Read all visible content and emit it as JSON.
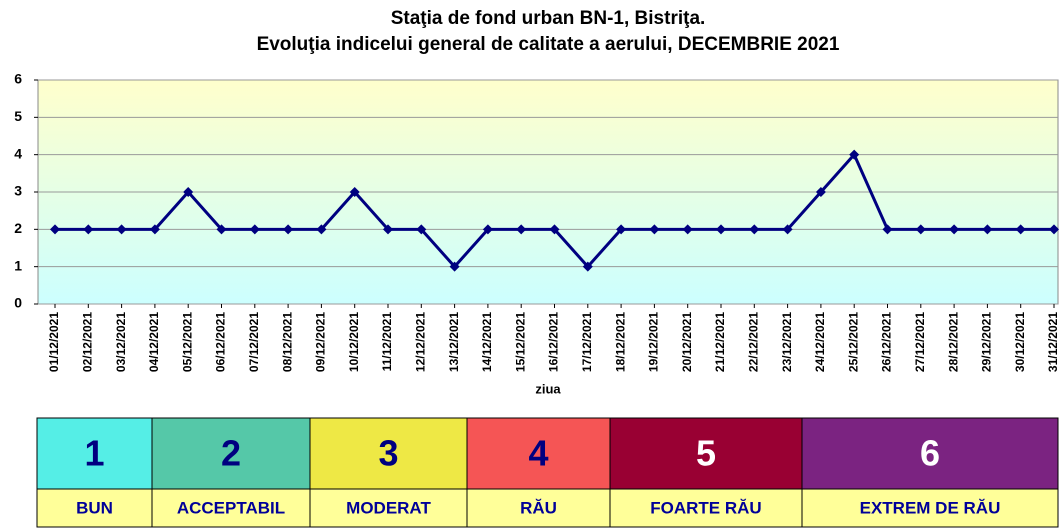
{
  "chart_data": {
    "type": "line",
    "title": "Staţia de fond urban BN-1, Bistriţa.",
    "subtitle": "Evoluţia indicelui general de calitate a aerului, DECEMBRIE 2021",
    "x_label": "ziua",
    "categories": [
      "01/12/2021",
      "02/12/2021",
      "03/12/2021",
      "04/12/2021",
      "05/12/2021",
      "06/12/2021",
      "07/12/2021",
      "08/12/2021",
      "09/12/2021",
      "10/12/2021",
      "11/12/2021",
      "12/12/2021",
      "13/12/2021",
      "14/12/2021",
      "15/12/2021",
      "16/12/2021",
      "17/12/2021",
      "18/12/2021",
      "19/12/2021",
      "20/12/2021",
      "21/12/2021",
      "22/12/2021",
      "23/12/2021",
      "24/12/2021",
      "25/12/2021",
      "26/12/2021",
      "27/12/2021",
      "28/12/2021",
      "29/12/2021",
      "30/12/2021",
      "31/12/2021"
    ],
    "values": [
      2,
      2,
      2,
      2,
      3,
      2,
      2,
      2,
      2,
      3,
      2,
      2,
      1,
      2,
      2,
      2,
      1,
      2,
      2,
      2,
      2,
      2,
      2,
      3,
      4,
      2,
      2,
      2,
      2,
      2,
      2
    ],
    "color": "#000080",
    "ylim": [
      0,
      6
    ],
    "yticks": [
      0,
      1,
      2,
      3,
      4,
      5,
      6
    ],
    "grid": true
  },
  "index_scale": [
    {
      "level": 1,
      "label": "BUN",
      "color": "#55eee6",
      "text_color": "#000080"
    },
    {
      "level": 2,
      "label": "ACCEPTABIL",
      "color": "#55c8a8",
      "text_color": "#000080"
    },
    {
      "level": 3,
      "label": "MODERAT",
      "color": "#eee845",
      "text_color": "#000080"
    },
    {
      "level": 4,
      "label": "RĂU",
      "color": "#f55555",
      "text_color": "#000080"
    },
    {
      "level": 5,
      "label": "FOARTE RĂU",
      "color": "#990033",
      "text_color": "#ffffff"
    },
    {
      "level": 6,
      "label": "EXTREM DE RĂU",
      "color": "#7b2381",
      "text_color": "#ffffff"
    }
  ]
}
